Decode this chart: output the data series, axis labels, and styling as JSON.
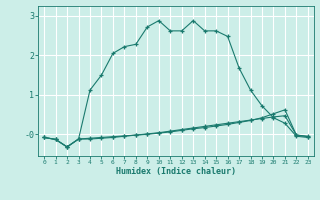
{
  "xlabel": "Humidex (Indice chaleur)",
  "background_color": "#cceee8",
  "grid_color": "#ffffff",
  "line_color": "#1a7a6e",
  "x": [
    0,
    1,
    2,
    3,
    4,
    5,
    6,
    7,
    8,
    9,
    10,
    11,
    12,
    13,
    14,
    15,
    16,
    17,
    18,
    19,
    20,
    21,
    22,
    23
  ],
  "line1": [
    -0.08,
    -0.13,
    -0.32,
    -0.12,
    1.12,
    1.5,
    2.05,
    2.22,
    2.28,
    2.72,
    2.88,
    2.62,
    2.62,
    2.88,
    2.62,
    2.62,
    2.48,
    1.68,
    1.12,
    0.72,
    0.42,
    0.28,
    -0.05,
    -0.08
  ],
  "line2": [
    -0.08,
    -0.13,
    -0.32,
    -0.12,
    -0.1,
    -0.08,
    -0.06,
    -0.04,
    -0.02,
    0.0,
    0.03,
    0.06,
    0.1,
    0.14,
    0.17,
    0.21,
    0.25,
    0.3,
    0.35,
    0.42,
    0.52,
    0.62,
    -0.02,
    -0.06
  ],
  "line3": [
    -0.08,
    -0.13,
    -0.32,
    -0.12,
    -0.12,
    -0.1,
    -0.08,
    -0.05,
    -0.02,
    0.01,
    0.04,
    0.08,
    0.12,
    0.16,
    0.2,
    0.24,
    0.28,
    0.32,
    0.36,
    0.4,
    0.44,
    0.47,
    -0.02,
    -0.05
  ],
  "ylim": [
    -0.55,
    3.25
  ],
  "yticks": [
    0,
    1,
    2,
    3
  ],
  "ytick_labels": [
    "-0",
    "1",
    "2",
    "3"
  ]
}
